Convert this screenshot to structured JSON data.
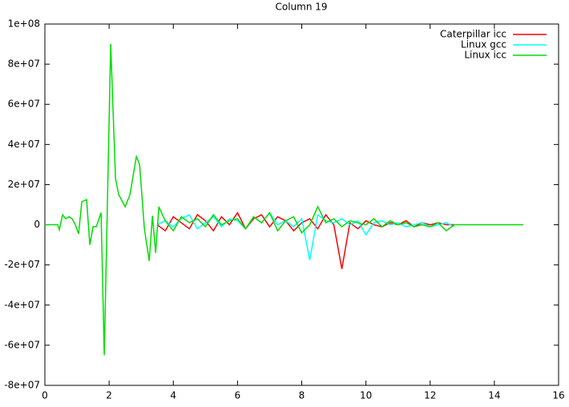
{
  "chart_data": {
    "type": "line",
    "title": "Column 19",
    "xlim": [
      0,
      16
    ],
    "xticks": [
      0,
      2,
      4,
      6,
      8,
      10,
      12,
      14,
      16
    ],
    "ylim": [
      -80000000,
      100000000
    ],
    "yticks": [
      {
        "value": -80000000,
        "label": "-8e+07"
      },
      {
        "value": -60000000,
        "label": "-6e+07"
      },
      {
        "value": -40000000,
        "label": "-4e+07"
      },
      {
        "value": -20000000,
        "label": "-2e+07"
      },
      0,
      {
        "value": 20000000,
        "label": "2e+07"
      },
      {
        "value": 40000000,
        "label": "4e+07"
      },
      {
        "value": 60000000,
        "label": "6e+07"
      },
      {
        "value": 80000000,
        "label": "8e+07"
      },
      {
        "value": 100000000,
        "label": "1e+08"
      }
    ],
    "grid": false,
    "legend": "top-right",
    "series": [
      {
        "name": "Caterpillar icc",
        "color": "#ff0000",
        "x": [
          3.5,
          3.75,
          4,
          4.25,
          4.5,
          4.75,
          5,
          5.25,
          5.5,
          5.75,
          6,
          6.25,
          6.5,
          6.75,
          7,
          7.25,
          7.5,
          7.75,
          8,
          8.25,
          8.5,
          8.75,
          9,
          9.25,
          9.5,
          9.75,
          10,
          10.25,
          10.5,
          10.75,
          11,
          11.25,
          11.5,
          11.75,
          12,
          12.25,
          12.5,
          12.75
        ],
        "values": [
          0,
          -3000000.0,
          4000000.0,
          1000000.0,
          -2000000.0,
          5000000.0,
          2000000.0,
          -3000000.0,
          4000000.0,
          0,
          6000000.0,
          -2000000.0,
          3000000.0,
          5000000.0,
          -1000000.0,
          4000000.0,
          2000000.0,
          -3000000.0,
          1000000.0,
          3000000.0,
          -2000000.0,
          5000000.0,
          0,
          -22000000.0,
          1000000.0,
          -2000000.0,
          2000000.0,
          0,
          -1000000.0,
          1000000.0,
          0,
          2000000.0,
          -1000000.0,
          1000000.0,
          0,
          1000000.0,
          0,
          0
        ]
      },
      {
        "name": "Linux gcc",
        "color": "#00ffff",
        "x": [
          3.5,
          3.75,
          4,
          4.25,
          4.5,
          4.75,
          5,
          5.25,
          5.5,
          5.75,
          6,
          6.25,
          6.5,
          6.75,
          7,
          7.25,
          7.5,
          7.75,
          8,
          8.25,
          8.5,
          8.75,
          9,
          9.25,
          9.5,
          9.75,
          10,
          10.25,
          10.5,
          10.75,
          11,
          11.25,
          11.5,
          11.75,
          12,
          12.25,
          12.5,
          12.75
        ],
        "values": [
          0,
          2000000.0,
          -1000000.0,
          3000000.0,
          5000000.0,
          -2000000.0,
          1000000.0,
          4000000.0,
          -1000000.0,
          3000000.0,
          2000000.0,
          -2000000.0,
          4000000.0,
          1000000.0,
          6000000.0,
          0,
          2000000.0,
          -1000000.0,
          3000000.0,
          -17500000.0,
          5000000.0,
          2000000.0,
          1000000.0,
          3000000.0,
          0,
          2000000.0,
          -5000000.0,
          1000000.0,
          2000000.0,
          0,
          1000000.0,
          -1000000.0,
          0,
          1000000.0,
          -1000000.0,
          0,
          1000000.0,
          -1000000.0
        ]
      },
      {
        "name": "Linux icc",
        "color": "#00dd00",
        "x": [
          0,
          0.2,
          0.4,
          0.45,
          0.55,
          0.65,
          0.75,
          0.85,
          0.95,
          1.05,
          1.15,
          1.3,
          1.4,
          1.5,
          1.6,
          1.75,
          1.85,
          2.05,
          2.2,
          2.3,
          2.5,
          2.65,
          2.85,
          2.95,
          3.1,
          3.25,
          3.35,
          3.45,
          3.55,
          3.75,
          4,
          4.25,
          4.5,
          4.75,
          5,
          5.25,
          5.5,
          5.75,
          6,
          6.25,
          6.5,
          6.75,
          7,
          7.25,
          7.5,
          7.75,
          8,
          8.25,
          8.5,
          8.75,
          9,
          9.25,
          9.5,
          9.75,
          10,
          10.25,
          10.5,
          10.75,
          11,
          11.25,
          11.5,
          11.75,
          12,
          12.25,
          12.5,
          12.75,
          13,
          14,
          14.9
        ],
        "values": [
          0,
          0,
          0,
          -2500000.0,
          5000000.0,
          3000000.0,
          4000000.0,
          3000000.0,
          0,
          -4500000.0,
          11500000.0,
          12500000.0,
          -10000000.0,
          -1000000.0,
          -1000000.0,
          6000000.0,
          -65000000.0,
          90000000.0,
          23000000.0,
          15000000.0,
          9000000.0,
          15000000.0,
          34000000.0,
          30000000.0,
          -2000000.0,
          -18000000.0,
          4500000.0,
          -14000000.0,
          9000000.0,
          2000000.0,
          -3000000.0,
          4000000.0,
          1000000.0,
          3000000.0,
          -1000000.0,
          5000000.0,
          0,
          2000000.0,
          3000000.0,
          -2000000.0,
          4000000.0,
          1000000.0,
          6000000.0,
          -3000000.0,
          2000000.0,
          4000000.0,
          -4000000.0,
          0,
          9000000.0,
          1000000.0,
          3000000.0,
          -1000000.0,
          2000000.0,
          1000000.0,
          0,
          3000000.0,
          -1000000.0,
          2000000.0,
          0,
          1000000.0,
          -1000000.0,
          0,
          -1000000.0,
          1000000.0,
          -3000000.0,
          0,
          0,
          0,
          0
        ]
      }
    ]
  }
}
